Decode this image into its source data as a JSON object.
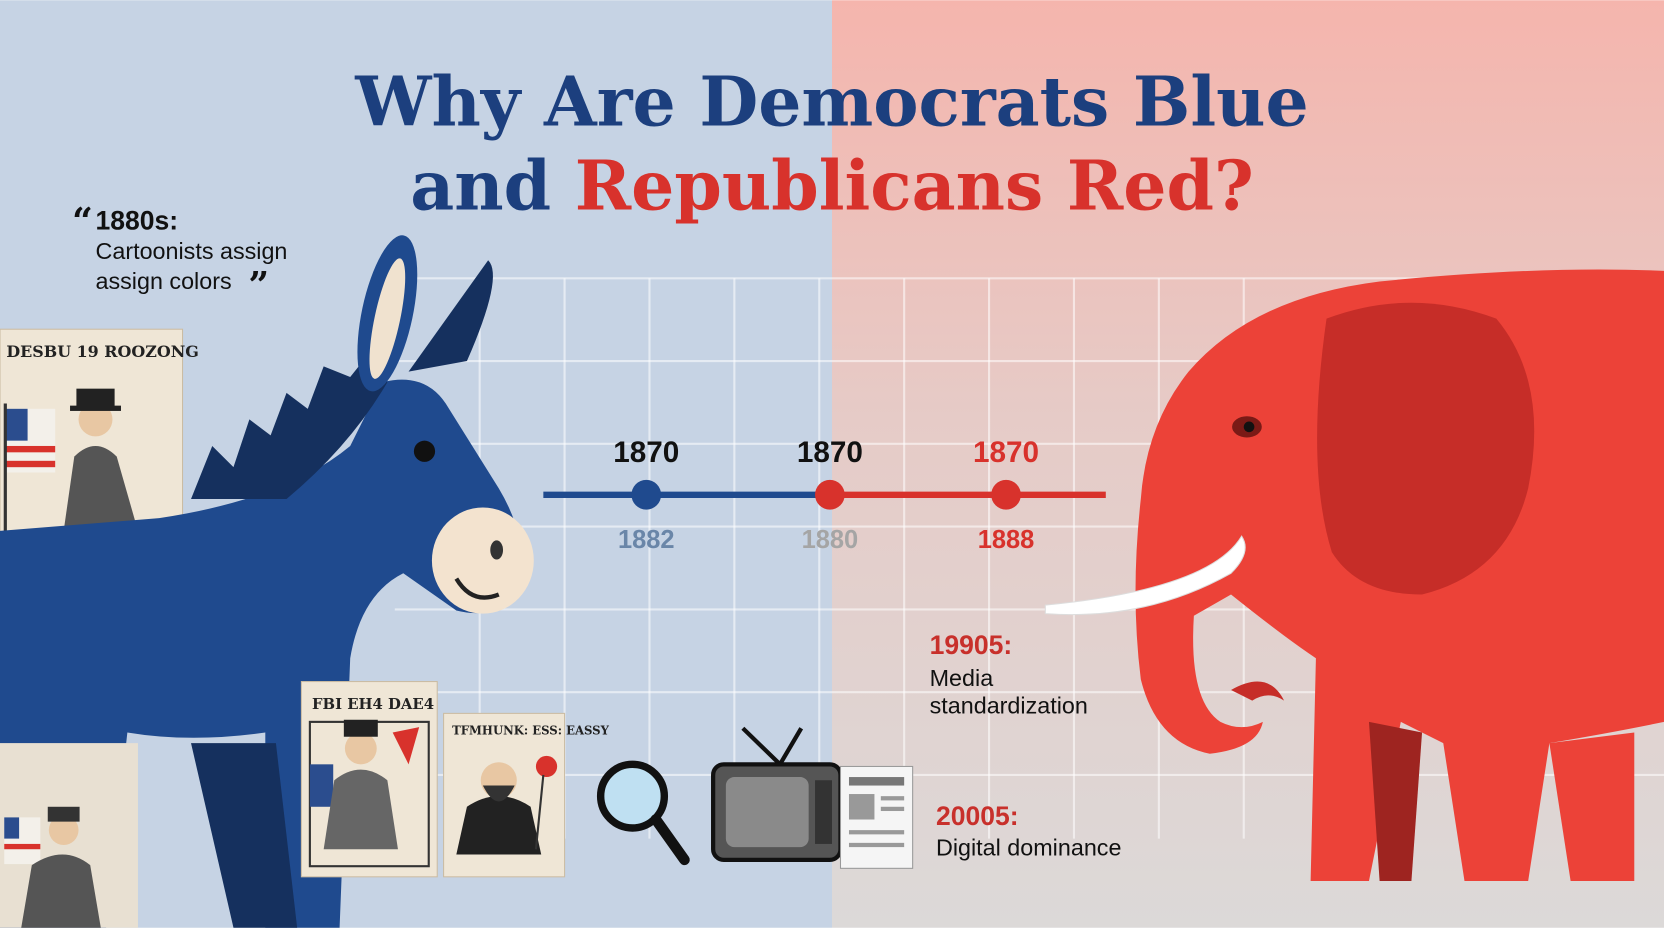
{
  "title": {
    "line1": "Why Are Democrats Blue",
    "line2_prefix": "and",
    "line2_highlight": "Republicans Red?"
  },
  "quote": {
    "open": "“",
    "heading": "1880s:",
    "lines": [
      "Cartoonists assign",
      "assign colors"
    ],
    "close": "”"
  },
  "timeline": {
    "points": [
      {
        "top": "1870",
        "bottom": "1882"
      },
      {
        "top": "1870",
        "bottom": "1880"
      },
      {
        "top": "1870",
        "bottom": "1888"
      }
    ]
  },
  "notes": [
    {
      "heading": "19905:",
      "lines": [
        "Media",
        "standardization"
      ]
    },
    {
      "heading": "20005:",
      "lines": [
        "Digital dominance"
      ]
    }
  ],
  "posters": [
    {
      "label": "DESBU 19 ROOZONG"
    },
    {
      "label": "FBI EH4 DAE4"
    },
    {
      "label": "TFMHUNK: ESS: EASSY"
    }
  ]
}
